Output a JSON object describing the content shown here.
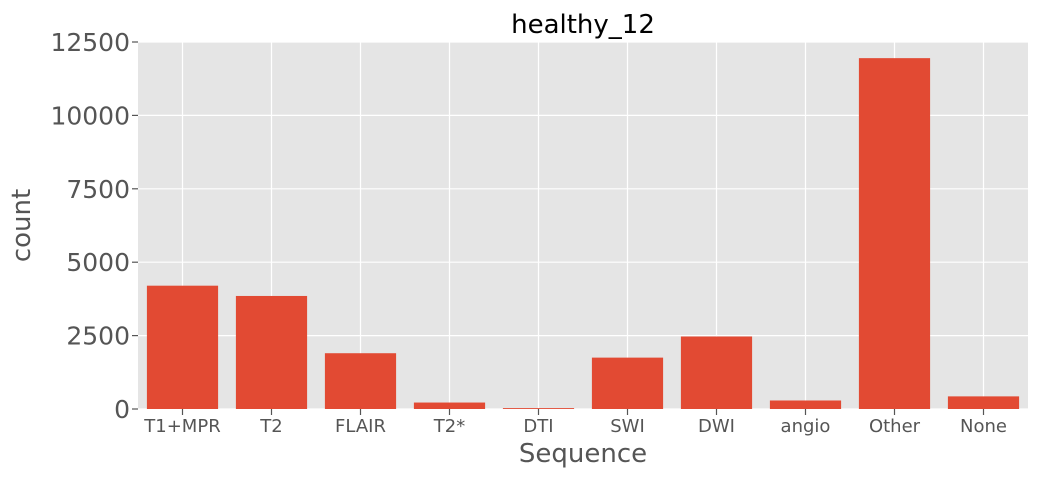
{
  "chart_data": {
    "type": "bar",
    "title": "healthy_12",
    "xlabel": "Sequence",
    "ylabel": "count",
    "categories": [
      "T1+MPR",
      "T2",
      "FLAIR",
      "T2*",
      "DTI",
      "SWI",
      "DWI",
      "angio",
      "Other",
      "None"
    ],
    "values": [
      4200,
      3850,
      1900,
      220,
      30,
      1750,
      2470,
      290,
      11950,
      430
    ],
    "ylim": [
      0,
      12500
    ],
    "yticks": [
      0,
      2500,
      5000,
      7500,
      10000,
      12500
    ],
    "grid": true,
    "bar_color": "#E24A33",
    "background_color": "#E5E5E5"
  }
}
